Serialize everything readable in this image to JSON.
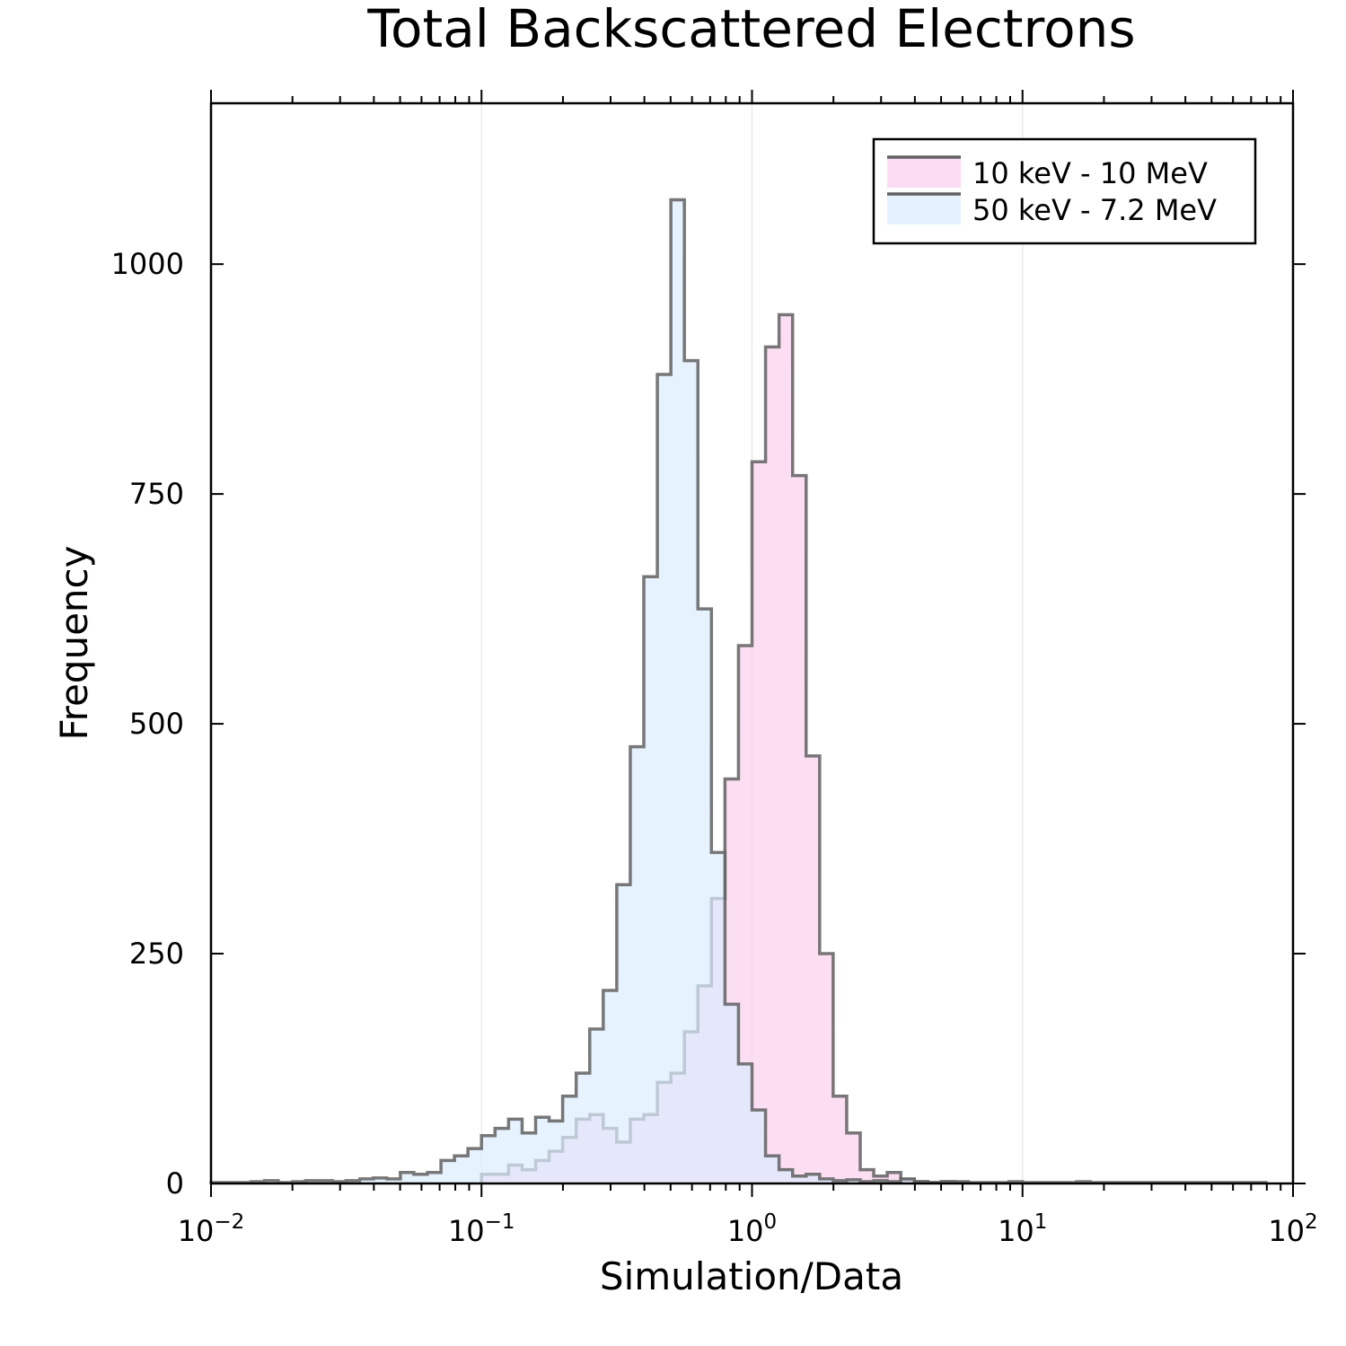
{
  "chart_data": {
    "type": "histogram",
    "title": "Total Backscattered Electrons",
    "xlabel": "Simulation/Data",
    "ylabel": "Frequency",
    "xscale": "log10",
    "xlim": [
      0.01,
      100
    ],
    "ylim": [
      0,
      1175
    ],
    "grid": true,
    "legend_position": "top-right",
    "x_ticks": [
      {
        "base": "10",
        "exp": "−2"
      },
      {
        "base": "10",
        "exp": "−1"
      },
      {
        "base": "10",
        "exp": "0"
      },
      {
        "base": "10",
        "exp": "1"
      },
      {
        "base": "10",
        "exp": "2"
      }
    ],
    "y_ticks": [
      "0",
      "250",
      "500",
      "750",
      "1000"
    ],
    "y_tick_values": [
      0,
      250,
      500,
      750,
      1000
    ],
    "bin_width_log10": 0.05,
    "series": [
      {
        "name": "10 keV - 10 MeV",
        "fill": "#fbd0ee",
        "stroke": "#606060",
        "bins": [
          [
            0.1,
            10
          ],
          [
            0.1122,
            10
          ],
          [
            0.1259,
            20
          ],
          [
            0.1413,
            15
          ],
          [
            0.1585,
            25
          ],
          [
            0.1778,
            35
          ],
          [
            0.1995,
            50
          ],
          [
            0.2239,
            70
          ],
          [
            0.2512,
            75
          ],
          [
            0.2818,
            60
          ],
          [
            0.3162,
            45
          ],
          [
            0.3548,
            70
          ],
          [
            0.3981,
            75
          ],
          [
            0.4467,
            110
          ],
          [
            0.5012,
            120
          ],
          [
            0.5623,
            165
          ],
          [
            0.631,
            215
          ],
          [
            0.7079,
            310
          ],
          [
            0.7943,
            440
          ],
          [
            0.8913,
            585
          ],
          [
            1.0,
            785
          ],
          [
            1.122,
            910
          ],
          [
            1.259,
            945
          ],
          [
            1.413,
            770
          ],
          [
            1.585,
            465
          ],
          [
            1.778,
            250
          ],
          [
            1.995,
            95
          ],
          [
            2.239,
            55
          ],
          [
            2.512,
            15
          ],
          [
            2.818,
            8
          ],
          [
            3.162,
            12
          ],
          [
            3.548,
            4
          ],
          [
            3.981,
            2
          ],
          [
            4.467,
            1
          ],
          [
            5.012,
            2
          ],
          [
            5.623,
            1
          ]
        ]
      },
      {
        "name": "50 keV - 7.2 MeV",
        "fill": "#dcecfd",
        "stroke": "#606060",
        "bins": [
          [
            0.01,
            1
          ],
          [
            0.0112,
            1
          ],
          [
            0.0126,
            1
          ],
          [
            0.0141,
            2
          ],
          [
            0.0158,
            3
          ],
          [
            0.0178,
            1
          ],
          [
            0.02,
            2
          ],
          [
            0.0224,
            3
          ],
          [
            0.0251,
            3
          ],
          [
            0.0282,
            2
          ],
          [
            0.0316,
            3
          ],
          [
            0.0355,
            5
          ],
          [
            0.0398,
            6
          ],
          [
            0.0447,
            5
          ],
          [
            0.0501,
            12
          ],
          [
            0.0562,
            10
          ],
          [
            0.0631,
            12
          ],
          [
            0.0708,
            25
          ],
          [
            0.0794,
            30
          ],
          [
            0.0891,
            38
          ],
          [
            0.1,
            52
          ],
          [
            0.1122,
            60
          ],
          [
            0.1259,
            70
          ],
          [
            0.1413,
            55
          ],
          [
            0.1585,
            72
          ],
          [
            0.1778,
            68
          ],
          [
            0.1995,
            95
          ],
          [
            0.2239,
            120
          ],
          [
            0.2512,
            168
          ],
          [
            0.2818,
            210
          ],
          [
            0.3162,
            325
          ],
          [
            0.3548,
            475
          ],
          [
            0.3981,
            660
          ],
          [
            0.4467,
            880
          ],
          [
            0.5012,
            1070
          ],
          [
            0.5623,
            895
          ],
          [
            0.631,
            625
          ],
          [
            0.7079,
            360
          ],
          [
            0.7943,
            195
          ],
          [
            0.8913,
            130
          ],
          [
            1.0,
            80
          ],
          [
            1.122,
            30
          ],
          [
            1.259,
            15
          ],
          [
            1.413,
            8
          ],
          [
            1.585,
            10
          ],
          [
            1.778,
            5
          ],
          [
            1.995,
            3
          ],
          [
            2.239,
            4
          ],
          [
            2.512,
            2
          ],
          [
            2.818,
            3
          ],
          [
            3.162,
            2
          ],
          [
            3.548,
            5
          ],
          [
            3.981,
            2
          ],
          [
            4.467,
            1
          ],
          [
            5.012,
            2
          ],
          [
            5.623,
            2
          ],
          [
            6.31,
            1
          ],
          [
            7.079,
            1
          ],
          [
            7.943,
            1
          ],
          [
            8.913,
            2
          ],
          [
            10.0,
            1
          ],
          [
            11.22,
            1
          ],
          [
            12.59,
            1
          ],
          [
            14.13,
            1
          ],
          [
            15.85,
            2
          ],
          [
            17.78,
            1
          ],
          [
            19.95,
            1
          ],
          [
            22.39,
            1
          ],
          [
            25.12,
            1
          ],
          [
            28.18,
            1
          ],
          [
            31.62,
            1
          ],
          [
            35.48,
            1
          ],
          [
            39.81,
            1
          ],
          [
            44.67,
            1
          ],
          [
            50.12,
            1
          ],
          [
            56.23,
            1
          ],
          [
            63.1,
            1
          ],
          [
            70.79,
            1
          ]
        ]
      }
    ]
  }
}
